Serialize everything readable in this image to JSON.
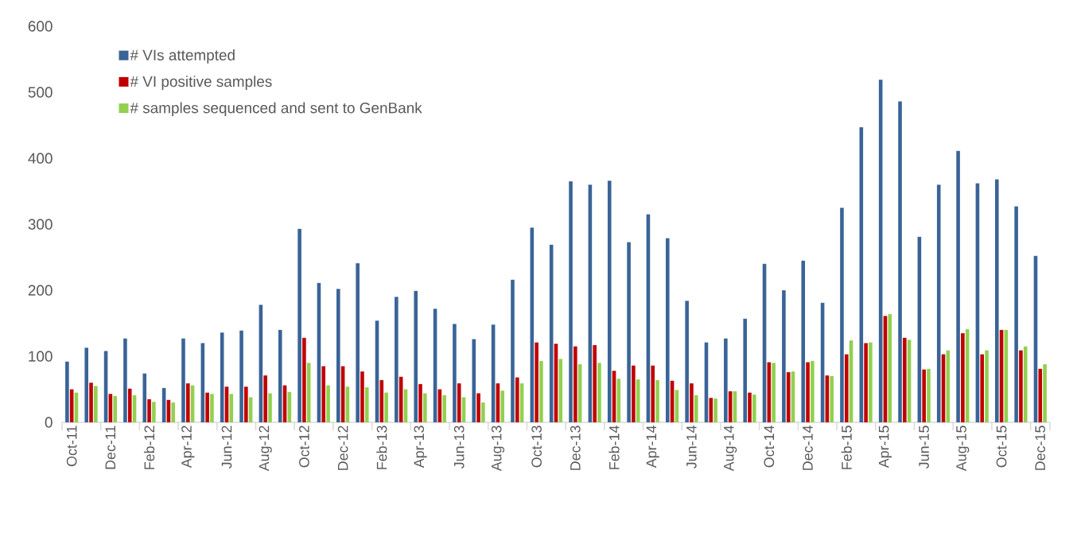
{
  "chart_data": {
    "type": "bar",
    "categories": [
      "Oct-11",
      null,
      "Dec-11",
      null,
      "Feb-12",
      null,
      "Apr-12",
      null,
      "Jun-12",
      null,
      "Aug-12",
      null,
      "Oct-12",
      null,
      "Dec-12",
      null,
      "Feb-13",
      null,
      "Apr-13",
      null,
      "Jun-13",
      null,
      "Aug-13",
      null,
      "Oct-13",
      null,
      "Dec-13",
      null,
      "Feb-14",
      null,
      "Apr-14",
      null,
      "Jun-14",
      null,
      "Aug-14",
      null,
      "Oct-14",
      null,
      "Dec-14",
      null,
      "Feb-15",
      null,
      "Apr-15",
      null,
      "Jun-15",
      null,
      "Aug-15",
      null,
      "Oct-15",
      null,
      "Dec-15"
    ],
    "series": [
      {
        "name": "# VIs attempted",
        "color": "#3a6497",
        "values": [
          92,
          113,
          108,
          127,
          74,
          52,
          127,
          120,
          136,
          139,
          178,
          140,
          293,
          211,
          202,
          241,
          154,
          190,
          199,
          172,
          149,
          126,
          148,
          216,
          295,
          269,
          365,
          360,
          366,
          273,
          315,
          279,
          184,
          121,
          127,
          157,
          240,
          200,
          245,
          181,
          325,
          447,
          519,
          486,
          281,
          360,
          411,
          362,
          368,
          327,
          252
        ]
      },
      {
        "name": "# VI positive samples",
        "color": "#c00000",
        "values": [
          50,
          60,
          43,
          51,
          35,
          34,
          59,
          45,
          54,
          54,
          71,
          56,
          128,
          85,
          85,
          77,
          64,
          69,
          58,
          50,
          59,
          44,
          59,
          68,
          121,
          119,
          115,
          117,
          78,
          86,
          86,
          63,
          59,
          37,
          47,
          45,
          91,
          76,
          91,
          71,
          103,
          120,
          161,
          128,
          80,
          103,
          135,
          103,
          140,
          109,
          81
        ]
      },
      {
        "name": "# samples sequenced and sent to GenBank",
        "color": "#92d050",
        "values": [
          45,
          55,
          40,
          41,
          31,
          30,
          56,
          43,
          43,
          38,
          44,
          46,
          90,
          56,
          54,
          53,
          45,
          50,
          44,
          41,
          38,
          30,
          48,
          59,
          93,
          96,
          88,
          90,
          66,
          65,
          64,
          49,
          41,
          36,
          47,
          42,
          90,
          77,
          93,
          70,
          124,
          121,
          164,
          125,
          81,
          109,
          141,
          109,
          140,
          115,
          88
        ]
      }
    ],
    "ylim": [
      0,
      600
    ],
    "yticks": [
      0,
      100,
      200,
      300,
      400,
      500,
      600
    ],
    "legend": "top left"
  }
}
